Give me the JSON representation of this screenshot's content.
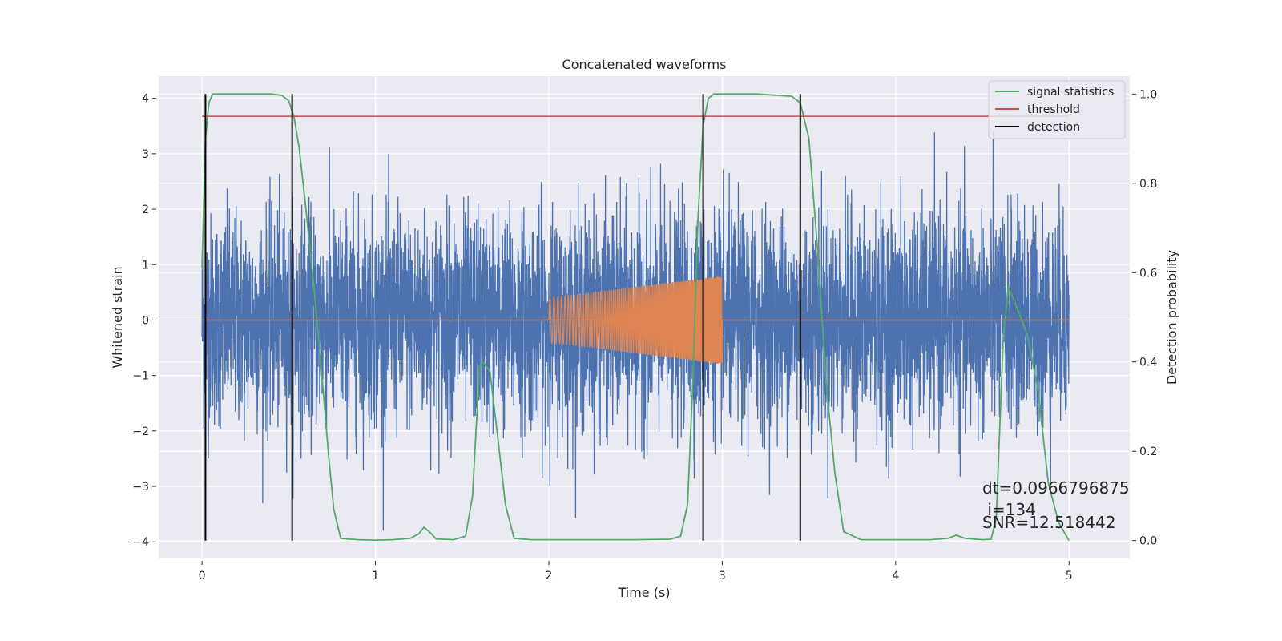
{
  "chart_data": {
    "type": "line",
    "title": "Concatenated waveforms",
    "xlabel": "Time (s)",
    "ylabel": "Whitened strain",
    "y2label": "Detection probability",
    "xlim": [
      -0.25,
      5.35
    ],
    "ylim": [
      -4.3,
      4.4
    ],
    "y2lim": [
      -0.04,
      1.04
    ],
    "xticks": [
      0,
      1,
      2,
      3,
      4,
      5
    ],
    "yticks": [
      4,
      3,
      2,
      1,
      0,
      -1,
      -2,
      -3,
      -4
    ],
    "y2ticks": [
      1.0,
      0.8,
      0.6,
      0.4,
      0.2,
      0.0
    ],
    "y2ticklabels": [
      "1.0",
      "0.8",
      "0.6",
      "0.4",
      "0.2",
      "0.0"
    ],
    "grid": true,
    "legend_position": "top-right",
    "colors": {
      "background": "#eaeaf2",
      "grid": "#ffffff",
      "strain": "#4c72b0",
      "waveform": "#dd8452",
      "signal_statistics": "#55a868",
      "threshold": "#c44e52",
      "detection": "#000000"
    },
    "series": [
      {
        "name": "signal statistics",
        "axis": "right",
        "x": [
          0.0,
          0.02,
          0.04,
          0.06,
          0.1,
          0.2,
          0.3,
          0.4,
          0.46,
          0.5,
          0.53,
          0.56,
          0.6,
          0.65,
          0.7,
          0.73,
          0.76,
          0.8,
          0.9,
          1.0,
          1.1,
          1.2,
          1.25,
          1.28,
          1.31,
          1.35,
          1.45,
          1.52,
          1.56,
          1.6,
          1.62,
          1.66,
          1.7,
          1.75,
          1.8,
          1.9,
          2.0,
          2.1,
          2.3,
          2.5,
          2.7,
          2.76,
          2.8,
          2.83,
          2.86,
          2.89,
          2.92,
          2.95,
          3.0,
          3.2,
          3.4,
          3.45,
          3.5,
          3.55,
          3.6,
          3.65,
          3.7,
          3.8,
          4.0,
          4.2,
          4.3,
          4.35,
          4.4,
          4.5,
          4.55,
          4.58,
          4.62,
          4.65,
          4.7,
          4.76,
          4.82,
          4.88,
          4.94,
          5.0
        ],
        "values": [
          0.61,
          0.9,
          0.98,
          1.0,
          1.0,
          1.0,
          1.0,
          1.0,
          0.997,
          0.985,
          0.95,
          0.88,
          0.74,
          0.55,
          0.33,
          0.19,
          0.07,
          0.005,
          0.002,
          0.001,
          0.002,
          0.005,
          0.015,
          0.03,
          0.02,
          0.004,
          0.002,
          0.01,
          0.1,
          0.39,
          0.4,
          0.38,
          0.25,
          0.08,
          0.005,
          0.002,
          0.002,
          0.002,
          0.002,
          0.002,
          0.003,
          0.01,
          0.08,
          0.35,
          0.72,
          0.93,
          0.99,
          1.0,
          1.0,
          1.0,
          0.995,
          0.98,
          0.9,
          0.65,
          0.35,
          0.15,
          0.02,
          0.002,
          0.002,
          0.002,
          0.005,
          0.012,
          0.005,
          0.002,
          0.003,
          0.05,
          0.45,
          0.57,
          0.52,
          0.46,
          0.34,
          0.13,
          0.04,
          0.0
        ]
      },
      {
        "name": "threshold",
        "axis": "right",
        "x": [
          0.0,
          5.0
        ],
        "values": [
          0.95,
          0.95
        ]
      },
      {
        "name": "detection",
        "axis": "right",
        "x": [
          0.02,
          0.52,
          2.89,
          3.45
        ],
        "values": [
          1.0,
          1.0,
          1.0,
          1.0
        ]
      },
      {
        "name": "",
        "axis": "left",
        "kind": "noise",
        "x_range": [
          0.0,
          5.0
        ],
        "amplitude_range": [
          -3.8,
          4.0
        ]
      },
      {
        "name": "",
        "axis": "left",
        "kind": "chirp",
        "x_range": [
          2.0,
          3.0
        ],
        "amplitude_start": 0.4,
        "amplitude_end": 0.8
      }
    ],
    "annotations": [
      "dt=0.0966796875",
      " i=134",
      "SNR=12.518442"
    ]
  }
}
